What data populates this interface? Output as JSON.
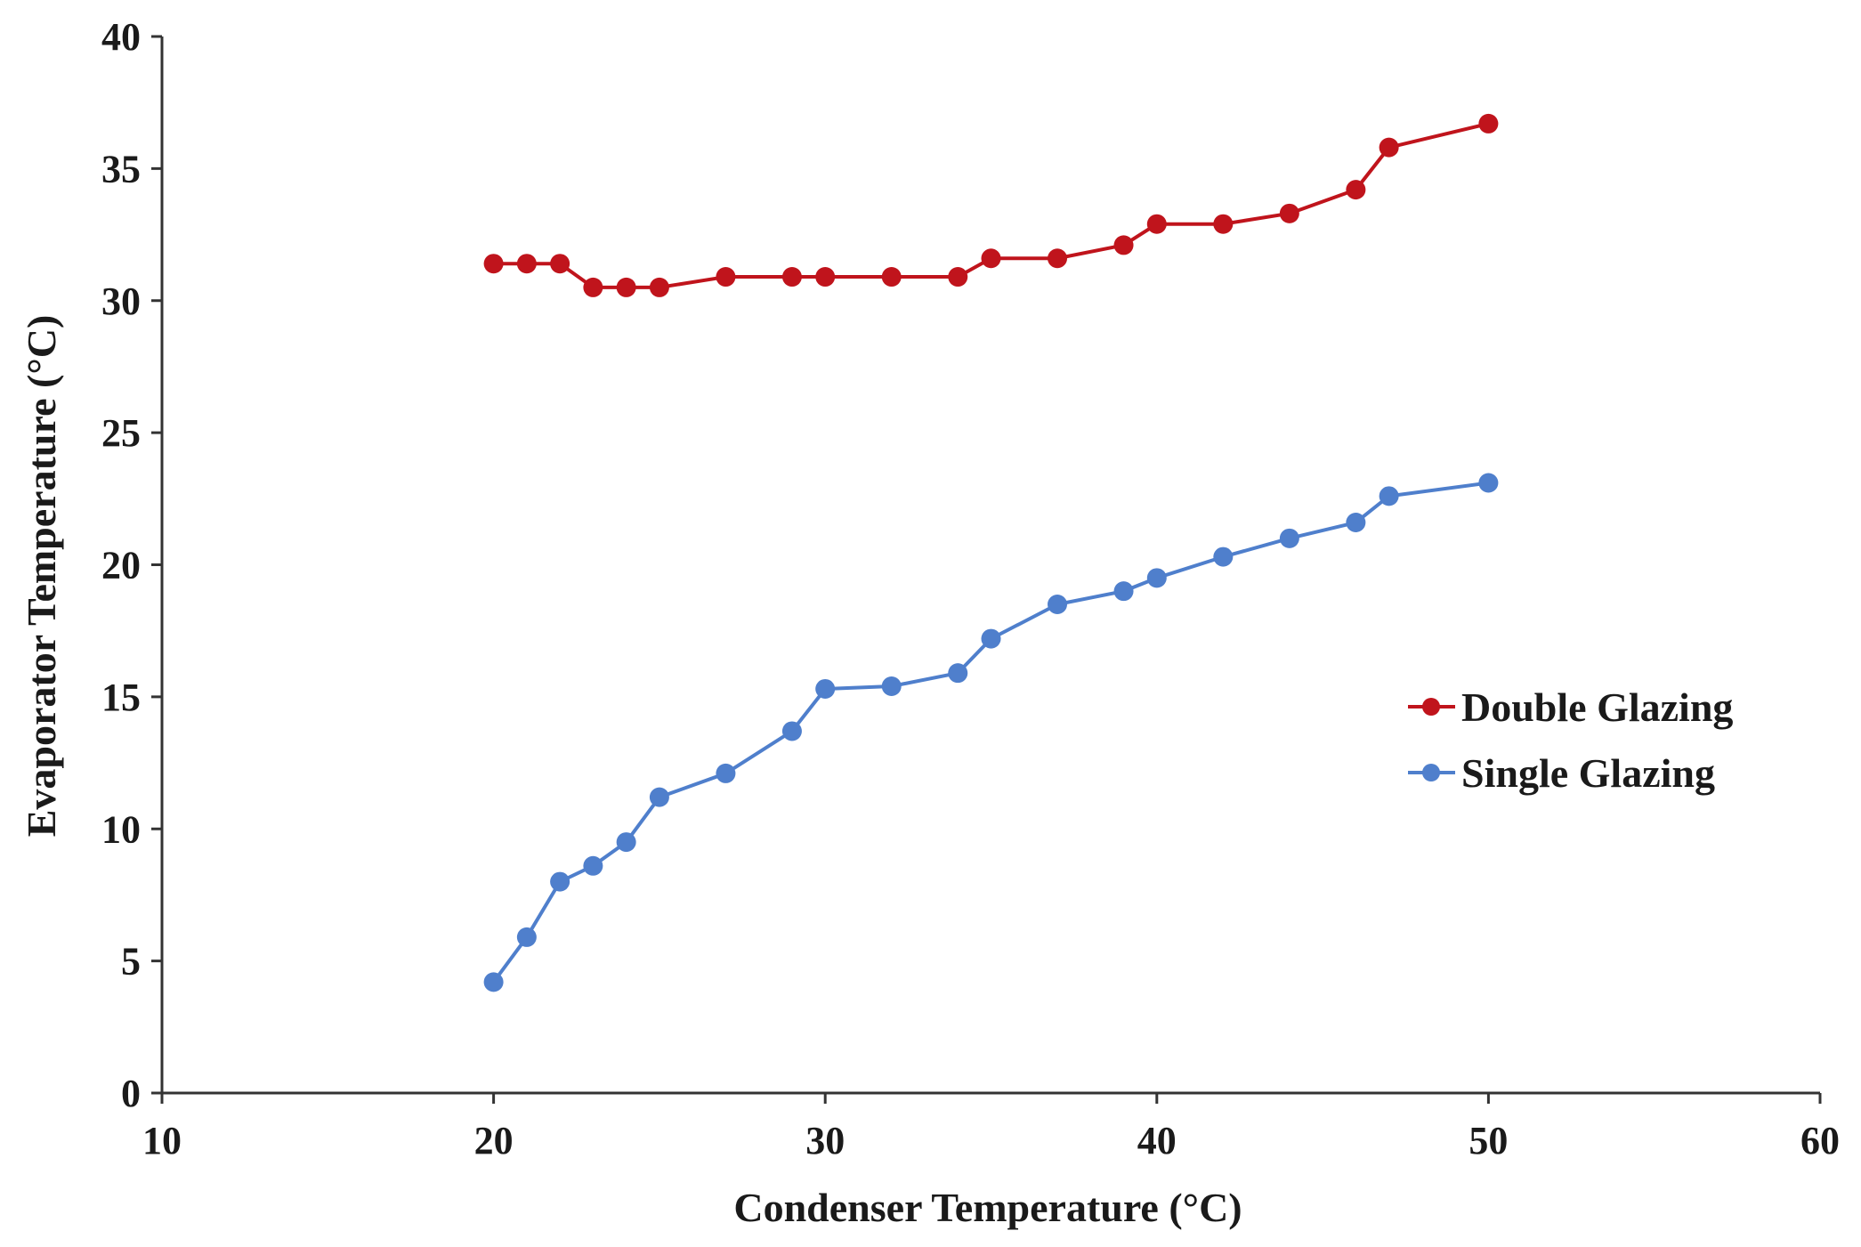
{
  "chart_data": {
    "type": "line",
    "title": "",
    "xlabel": "Condenser Temperature (°C)",
    "ylabel": "Evaporator Temperature (°C)",
    "xlim": [
      10,
      60
    ],
    "ylim": [
      0,
      40
    ],
    "xticks": [
      10,
      20,
      30,
      40,
      50,
      60
    ],
    "yticks": [
      0,
      5,
      10,
      15,
      20,
      25,
      30,
      35,
      40
    ],
    "grid": false,
    "legend_position": "right",
    "series": [
      {
        "name": "Double Glazing",
        "color": "#c0141c",
        "x": [
          20,
          21,
          22,
          23,
          24,
          25,
          27,
          29,
          30,
          32,
          34,
          35,
          37,
          39,
          40,
          42,
          44,
          46,
          47,
          50
        ],
        "y": [
          31.4,
          31.4,
          31.4,
          30.5,
          30.5,
          30.5,
          30.9,
          30.9,
          30.9,
          30.9,
          30.9,
          31.6,
          31.6,
          32.1,
          32.9,
          32.9,
          33.3,
          34.2,
          35.8,
          36.7
        ]
      },
      {
        "name": "Single Glazing",
        "color": "#4f7fcc",
        "x": [
          20,
          21,
          22,
          23,
          24,
          25,
          27,
          29,
          30,
          32,
          34,
          35,
          37,
          39,
          40,
          42,
          44,
          46,
          47,
          50
        ],
        "y": [
          4.2,
          5.9,
          8.0,
          8.6,
          9.5,
          11.2,
          12.1,
          13.7,
          15.3,
          15.4,
          15.9,
          17.2,
          18.5,
          19.0,
          19.5,
          20.3,
          21.0,
          21.6,
          22.6,
          23.1
        ]
      }
    ]
  }
}
